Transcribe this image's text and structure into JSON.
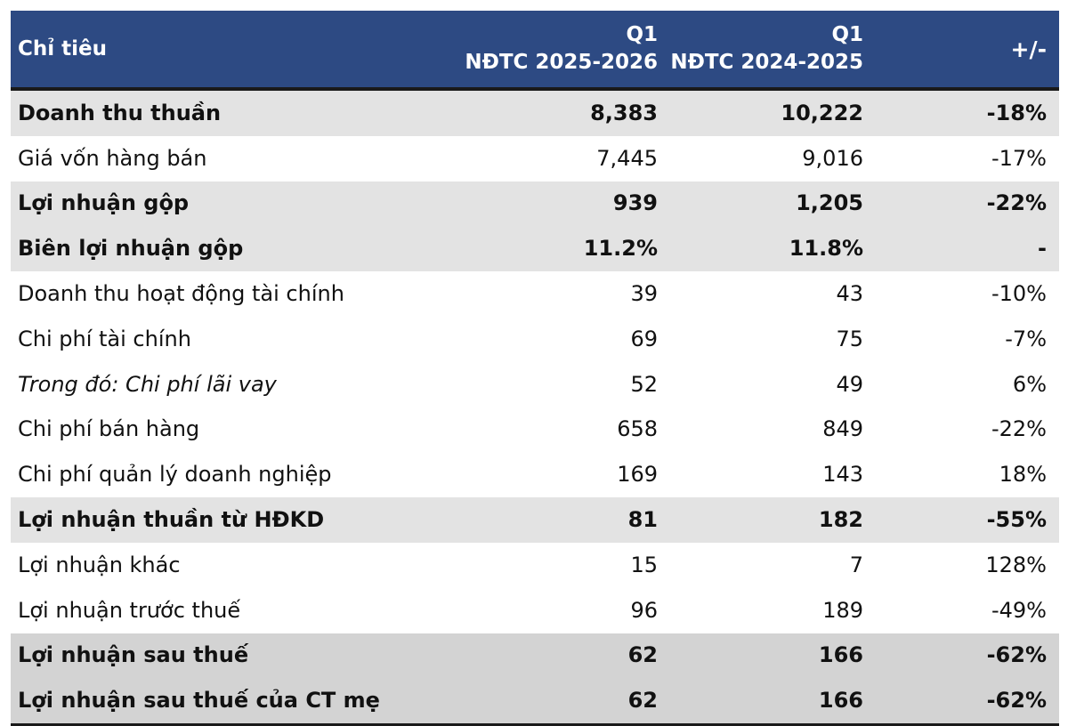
{
  "header": {
    "label": "Chỉ tiêu",
    "col_a_line1": "Q1",
    "col_a_line2": "NĐTC 2025-2026",
    "col_b_line1": "Q1",
    "col_b_line2": "NĐTC 2024-2025",
    "col_c": "+/-",
    "background": "#2d4a83"
  },
  "rows": [
    {
      "label": "Doanh thu thuần",
      "a": "8,383",
      "b": "10,222",
      "c": "-18%"
    },
    {
      "label": "Giá vốn hàng bán",
      "a": "7,445",
      "b": "9,016",
      "c": "-17%"
    },
    {
      "label": "Lợi nhuận gộp",
      "a": "939",
      "b": "1,205",
      "c": "-22%"
    },
    {
      "label": "Biên lợi nhuận gộp",
      "a": "11.2%",
      "b": "11.8%",
      "c": "-"
    },
    {
      "label": "Doanh thu hoạt động tài chính",
      "a": "39",
      "b": "43",
      "c": "-10%"
    },
    {
      "label": "Chi phí tài chính",
      "a": "69",
      "b": "75",
      "c": "-7%"
    },
    {
      "label": "Trong đó: Chi phí lãi vay",
      "a": "52",
      "b": "49",
      "c": "6%"
    },
    {
      "label": "Chi phí bán hàng",
      "a": "658",
      "b": "849",
      "c": "-22%"
    },
    {
      "label": "Chi phí quản lý doanh nghiệp",
      "a": "169",
      "b": "143",
      "c": "18%"
    },
    {
      "label": "Lợi nhuận thuần từ HĐKD",
      "a": "81",
      "b": "182",
      "c": "-55%"
    },
    {
      "label": "Lợi nhuận khác",
      "a": "15",
      "b": "7",
      "c": "128%"
    },
    {
      "label": "Lợi nhuận trước thuế",
      "a": "96",
      "b": "189",
      "c": "-49%"
    },
    {
      "label": "Lợi nhuận sau thuế",
      "a": "62",
      "b": "166",
      "c": "-62%"
    },
    {
      "label": "Lợi nhuận sau thuế của CT mẹ",
      "a": "62",
      "b": "166",
      "c": "-62%"
    }
  ]
}
